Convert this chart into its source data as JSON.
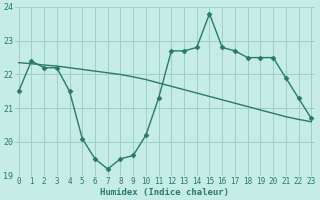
{
  "line1_x": [
    0,
    1,
    2,
    3,
    4,
    5,
    6,
    7,
    8,
    9,
    10,
    11,
    12,
    13,
    14,
    15,
    16,
    17,
    18,
    19,
    20,
    21,
    22,
    23
  ],
  "line1_y": [
    21.5,
    22.4,
    22.2,
    22.2,
    21.5,
    20.1,
    19.5,
    19.2,
    19.5,
    19.6,
    20.2,
    21.3,
    22.7,
    22.7,
    22.8,
    23.8,
    22.8,
    22.7,
    22.5,
    22.5,
    22.5,
    21.9,
    21.3,
    20.7
  ],
  "line2_x": [
    0,
    1,
    2,
    3,
    4,
    5,
    6,
    7,
    8,
    9,
    10,
    11,
    12,
    13,
    14,
    15,
    16,
    17,
    18,
    19,
    20,
    21,
    22,
    23
  ],
  "line2_y": [
    22.35,
    22.32,
    22.28,
    22.25,
    22.2,
    22.15,
    22.1,
    22.05,
    22.0,
    21.93,
    21.85,
    21.75,
    21.65,
    21.55,
    21.45,
    21.35,
    21.25,
    21.15,
    21.05,
    20.95,
    20.85,
    20.75,
    20.67,
    20.6
  ],
  "line_color": "#2a7b65",
  "bg_color": "#c5ece6",
  "grid_color": "#9ed0c8",
  "xlabel": "Humidex (Indice chaleur)",
  "ylim": [
    19,
    24
  ],
  "xlim": [
    -0.3,
    23.3
  ],
  "yticks": [
    19,
    20,
    21,
    22,
    23,
    24
  ],
  "xticks": [
    0,
    1,
    2,
    3,
    4,
    5,
    6,
    7,
    8,
    9,
    10,
    11,
    12,
    13,
    14,
    15,
    16,
    17,
    18,
    19,
    20,
    21,
    22,
    23
  ],
  "markersize": 2.5,
  "linewidth": 1.0
}
